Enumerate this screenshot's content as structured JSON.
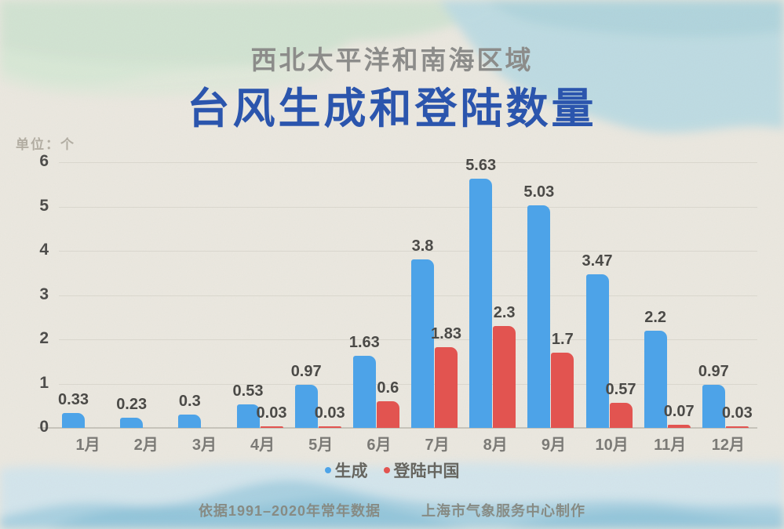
{
  "header": {
    "subtitle": "西北太平洋和南海区域",
    "title": "台风生成和登陆数量"
  },
  "chart_data": {
    "type": "bar",
    "title": "台风生成和登陆数量",
    "subtitle": "西北太平洋和南海区域",
    "ylabel": "单位：个",
    "categories": [
      "1月",
      "2月",
      "3月",
      "4月",
      "5月",
      "6月",
      "7月",
      "8月",
      "9月",
      "10月",
      "11月",
      "12月"
    ],
    "series": [
      {
        "name": "生成",
        "color": "#4da3e8",
        "values": [
          0.33,
          0.23,
          0.3,
          0.53,
          0.97,
          1.63,
          3.8,
          5.63,
          5.03,
          3.47,
          2.2,
          0.97
        ]
      },
      {
        "name": "登陆中国",
        "color": "#e25450",
        "values": [
          null,
          null,
          null,
          0.03,
          0.03,
          0.6,
          1.83,
          2.3,
          1.7,
          0.57,
          0.07,
          0.03
        ]
      }
    ],
    "ylim": [
      0,
      6
    ],
    "yticks": [
      0,
      1,
      2,
      3,
      4,
      5,
      6
    ],
    "grid": true,
    "legend_position": "bottom"
  },
  "footer": {
    "source": "依据1991–2020年常年数据",
    "credit": "上海市气象服务中心制作"
  },
  "colors": {
    "generated_bar": "#4da3e8",
    "landfall_bar": "#e25450",
    "title_blue": "#2b55ad",
    "paper_background": "#ece9e1"
  }
}
